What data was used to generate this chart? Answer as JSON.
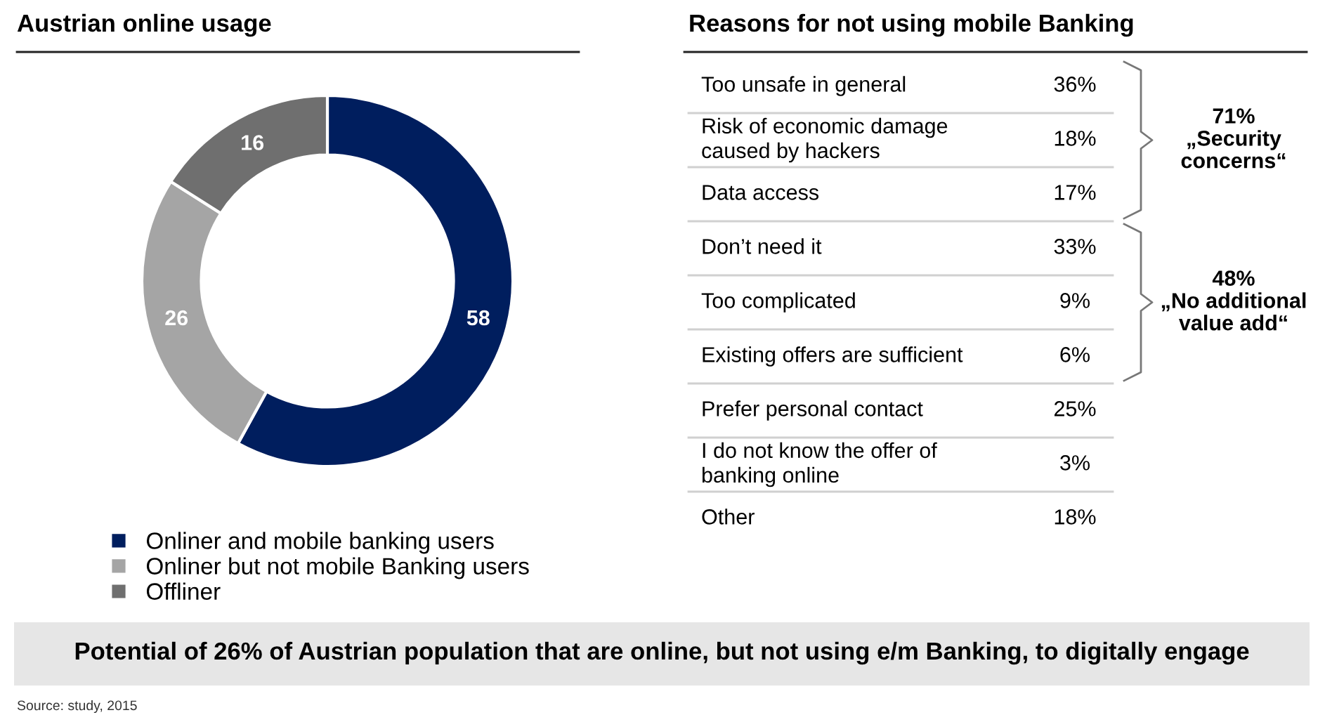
{
  "chart_data": [
    {
      "type": "donut",
      "title": "Austrian online usage",
      "categories": [
        "Onliner and mobile banking users",
        "Onliner but not mobile Banking users",
        "Offliner"
      ],
      "values": [
        58,
        26,
        16
      ],
      "colors": [
        "#001e5e",
        "#a5a5a5",
        "#6f6f6f"
      ],
      "data_labels": true,
      "legend": "bottom",
      "annotations": [
        "Potential of 26% of Austrian population that are online, but not using e/m Banking, to digitally engage",
        "Source: study, 2015"
      ]
    },
    {
      "type": "other",
      "title": "Reasons for not using mobile Banking",
      "categories": [
        "Too unsafe in general",
        "Risk of economic damage\ncaused by hackers",
        "Data access",
        "Don’t need it",
        "Too complicated",
        "Existing offers are sufficient",
        "Prefer personal contact",
        "I do not know the offer of\nbanking online",
        "Other"
      ],
      "values": [
        36,
        18,
        17,
        33,
        9,
        6,
        25,
        3,
        18
      ],
      "value_labels": [
        "36%",
        "18%",
        "17%",
        "33%",
        "9%",
        "6%",
        "25%",
        "3%",
        "18%"
      ],
      "annotations": [
        "71%\n„Security\nconcerns“",
        "48%\n„No additional\nvalue add“"
      ]
    }
  ]
}
